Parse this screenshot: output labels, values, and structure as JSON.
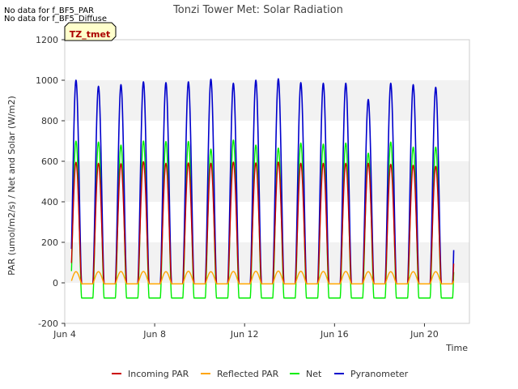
{
  "notes": [
    "No data for f_BF5_PAR",
    "No data for f_BF5_Diffuse"
  ],
  "site_badge": "TZ_tmet",
  "colors": {
    "incoming_par": "#cc0000",
    "reflected_par": "#ffa500",
    "net": "#00ee00",
    "pyranometer": "#0000cc",
    "band": "#f2f2f2",
    "badge_bg": "#ffffcc",
    "badge_text": "#aa0000"
  },
  "chart_data": {
    "type": "line",
    "title": "Tonzi Tower Met: Solar Radiation",
    "xlabel": "Time",
    "ylabel": "PAR (umol/m2/s) / Net and Solar (W/m2)",
    "xlim": [
      4.0,
      22.0
    ],
    "ylim": [
      -200,
      1200
    ],
    "yticks": [
      -200,
      0,
      200,
      400,
      600,
      800,
      1000,
      1200
    ],
    "xticks": [
      {
        "value": 4,
        "label": "Jun 4"
      },
      {
        "value": 8,
        "label": "Jun 8"
      },
      {
        "value": 12,
        "label": "Jun 12"
      },
      {
        "value": 16,
        "label": "Jun 16"
      },
      {
        "value": 20,
        "label": "Jun 20"
      }
    ],
    "data_start_day": 4.3,
    "data_end_day": 21.3,
    "days": [
      4,
      5,
      6,
      7,
      8,
      9,
      10,
      11,
      12,
      13,
      14,
      15,
      16,
      17,
      18,
      19,
      20
    ],
    "series": [
      {
        "name": "Incoming PAR",
        "key": "incoming_par",
        "night": -5,
        "daily_peaks": [
          595,
          590,
          588,
          598,
          590,
          592,
          590,
          596,
          592,
          596,
          590,
          590,
          590,
          590,
          585,
          580,
          575
        ]
      },
      {
        "name": "Reflected PAR",
        "key": "reflected_par",
        "night": -5,
        "daily_peaks": [
          55,
          55,
          56,
          56,
          55,
          57,
          55,
          56,
          57,
          58,
          57,
          56,
          56,
          55,
          55,
          55,
          55
        ]
      },
      {
        "name": "Net",
        "key": "net",
        "night": -75,
        "daily_peaks": [
          700,
          695,
          680,
          700,
          698,
          698,
          660,
          705,
          680,
          665,
          690,
          685,
          690,
          640,
          695,
          670,
          670
        ]
      },
      {
        "name": "Pyranometer",
        "key": "pyranometer",
        "night": -5,
        "daily_peaks": [
          1000,
          970,
          978,
          992,
          988,
          992,
          1005,
          985,
          1000,
          1007,
          988,
          985,
          985,
          905,
          985,
          978,
          965
        ]
      }
    ],
    "legend_position": "bottom",
    "grid": false
  }
}
